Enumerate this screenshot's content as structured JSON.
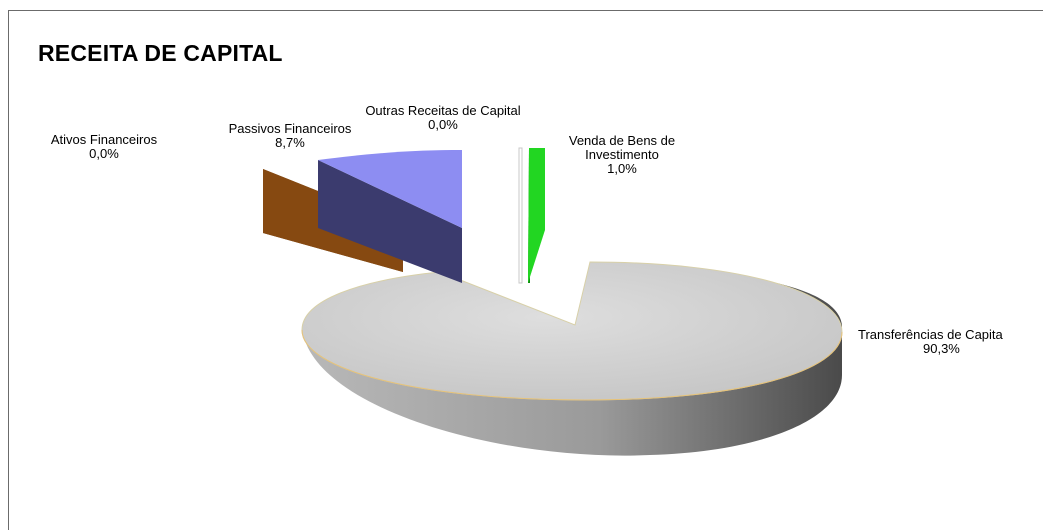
{
  "chart_data": {
    "type": "pie",
    "title": "RECEITA DE CAPITAL",
    "slices": [
      {
        "name": "Ativos Financeiros",
        "value": 0.0,
        "display": "0,0%",
        "color": "#8b4a10"
      },
      {
        "name": "Passivos Financeiros",
        "value": 8.7,
        "display": "8,7%",
        "color": "#8b8bf0"
      },
      {
        "name": "Outras Receitas de Capital",
        "value": 0.0,
        "display": "0,0%",
        "color": "#c8c8c8"
      },
      {
        "name": "Venda de Bens de Investimento",
        "name_lines": [
          "Venda de Bens de",
          "Investimento"
        ],
        "value": 1.0,
        "display": "1,0%",
        "color": "#22d622"
      },
      {
        "name": "Transferências de Capital",
        "name_lines": [
          "Transferências de Capita"
        ],
        "value": 90.3,
        "display": "90,3%",
        "color": "#c9c9c9"
      }
    ]
  }
}
